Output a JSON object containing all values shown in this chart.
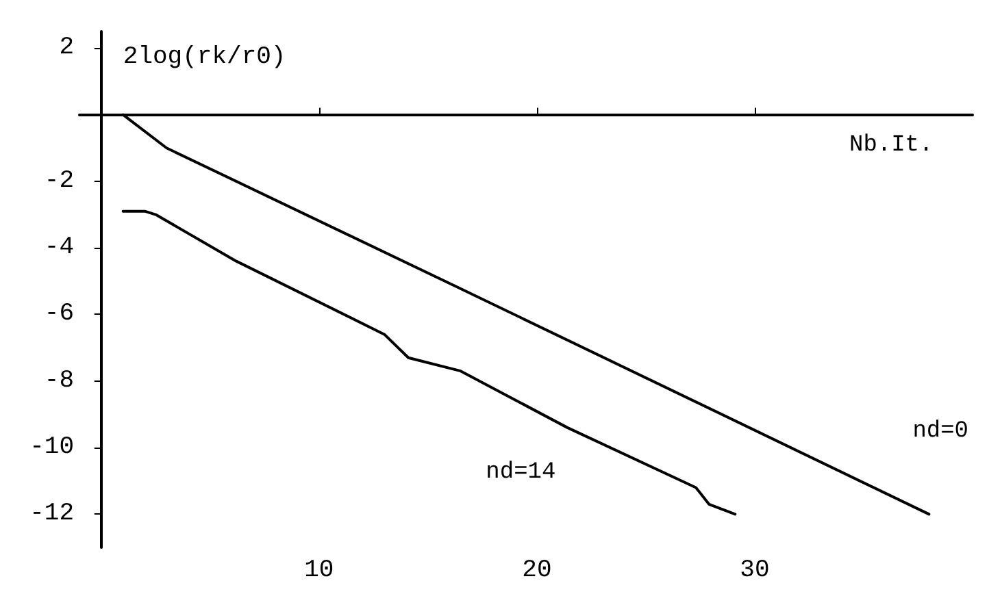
{
  "chart_data": {
    "type": "line",
    "xlabel": "Nb.It.",
    "ylabel": "2log(rk/r0)",
    "xlim": [
      -1,
      40
    ],
    "ylim": [
      -13,
      2.5
    ],
    "xticks": [
      10,
      20,
      30
    ],
    "yticks": [
      2,
      -2,
      -4,
      -6,
      -8,
      -10,
      -12
    ],
    "grid": false,
    "legend": false,
    "marker": "none",
    "line_style": "solid",
    "series": [
      {
        "name": "nd=0",
        "color": "#000000",
        "x": [
          1,
          3,
          16.1,
          38
        ],
        "values": [
          0,
          -1,
          -5.1,
          -12
        ]
      },
      {
        "name": "nd=14",
        "color": "#000000",
        "x": [
          1,
          2,
          2.5,
          6.2,
          13,
          14.1,
          16.5,
          21.4,
          27.3,
          27.9,
          29.1
        ],
        "values": [
          -2.9,
          -2.9,
          -3,
          -4.4,
          -6.6,
          -7.3,
          -7.7,
          -9.4,
          -11.2,
          -11.7,
          -12
        ]
      }
    ]
  }
}
